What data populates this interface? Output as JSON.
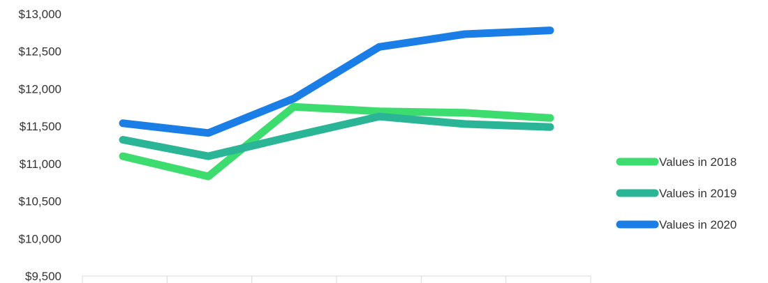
{
  "chart_data": {
    "type": "line",
    "title": "",
    "xlabel": "",
    "ylabel": "",
    "categories_visible": false,
    "x": [
      1,
      2,
      3,
      4,
      5,
      6
    ],
    "ylim": [
      9500,
      13000
    ],
    "yticks": [
      9500,
      10000,
      10500,
      11000,
      11500,
      12000,
      12500,
      13000
    ],
    "ytick_labels": [
      "$9,500",
      "$10,000",
      "$10,500",
      "$11,000",
      "$11,500",
      "$12,000",
      "$12,500",
      "$13,000"
    ],
    "grid": false,
    "legend_position": "right",
    "series": [
      {
        "name": "Values in 2018",
        "color": "#3cdc6e",
        "values": [
          11100,
          10830,
          11760,
          11700,
          11680,
          11610
        ]
      },
      {
        "name": "Values in 2019",
        "color": "#2ab596",
        "values": [
          11320,
          11100,
          11370,
          11630,
          11530,
          11490
        ]
      },
      {
        "name": "Values in 2020",
        "color": "#1a7ee6",
        "values": [
          11540,
          11410,
          11870,
          12560,
          12730,
          12780
        ]
      }
    ]
  }
}
